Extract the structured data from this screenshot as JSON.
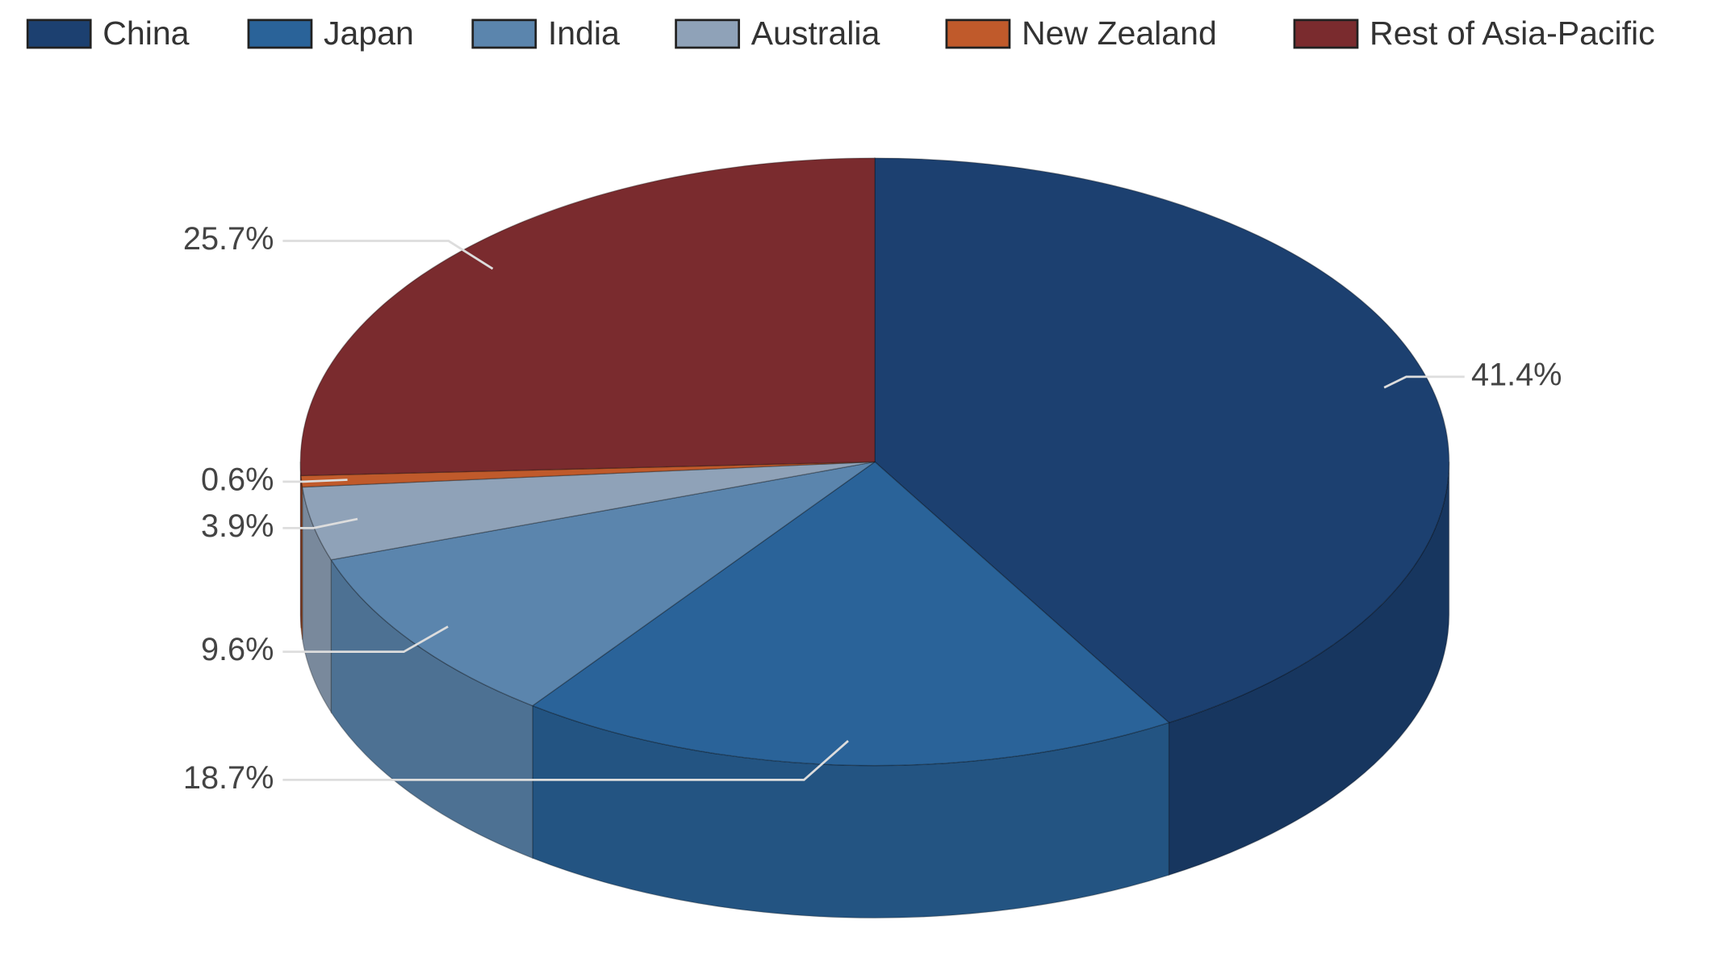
{
  "chart_data": {
    "type": "pie3d",
    "categories": [
      "China",
      "Japan",
      "India",
      "Australia",
      "New Zealand",
      "Rest of Asia-Pacific"
    ],
    "values": [
      41.4,
      18.7,
      9.6,
      3.9,
      0.6,
      25.7
    ],
    "value_labels": [
      "41.4%",
      "18.7%",
      "9.6%",
      "3.9%",
      "0.6%",
      "25.7%"
    ],
    "colors": [
      "#1c4070",
      "#2a6399",
      "#5b85ad",
      "#8fa2b8",
      "#c05a2b",
      "#7a2b2e"
    ],
    "legend": "top"
  }
}
